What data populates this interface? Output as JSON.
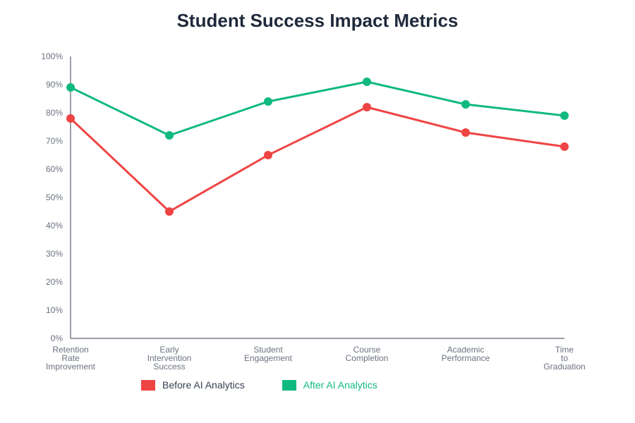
{
  "chart_data": {
    "type": "line",
    "title": "Student Success Impact Metrics",
    "categories": [
      [
        "Retention",
        "Rate",
        "Improvement"
      ],
      [
        "Early",
        "Intervention",
        "Success"
      ],
      [
        "Student",
        "Engagement"
      ],
      [
        "Course",
        "Completion"
      ],
      [
        "Academic",
        "Performance"
      ],
      [
        "Time",
        "to",
        "Graduation"
      ]
    ],
    "ylim": [
      0,
      100
    ],
    "yticks": [
      "0%",
      "10%",
      "20%",
      "30%",
      "40%",
      "50%",
      "60%",
      "70%",
      "80%",
      "90%",
      "100%"
    ],
    "grid": false,
    "legend_position": "bottom-left",
    "series": [
      {
        "name": "Before AI Analytics",
        "color": "#ef4444",
        "values": [
          78,
          45,
          65,
          82,
          73,
          68
        ]
      },
      {
        "name": "After AI Analytics",
        "color": "#10b981",
        "values": [
          89,
          72,
          84,
          91,
          83,
          79
        ]
      }
    ]
  },
  "colors": {
    "axis": "#374151",
    "tick_text": "#6b7280",
    "title": "#1e293b",
    "legend_before_text": "#374151",
    "legend_after_text": "#10b981"
  }
}
